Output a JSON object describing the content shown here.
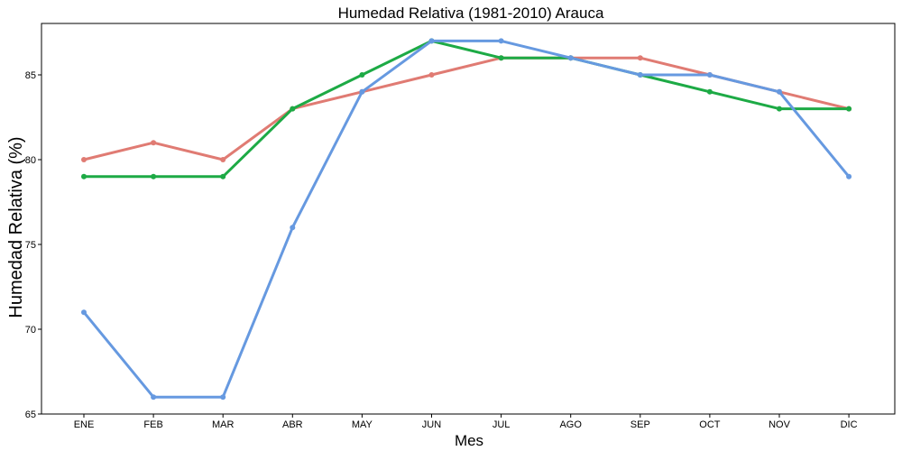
{
  "chart_data": {
    "type": "line",
    "title": "Humedad Relativa (1981-2010)  Arauca",
    "xlabel": "Mes",
    "ylabel": "Humedad Relativa  (%)",
    "categories": [
      "ENE",
      "FEB",
      "MAR",
      "ABR",
      "MAY",
      "JUN",
      "JUL",
      "AGO",
      "SEP",
      "OCT",
      "NOV",
      "DIC"
    ],
    "yticks": [
      65,
      70,
      75,
      80,
      85
    ],
    "ylim": [
      65,
      88
    ],
    "grid": false,
    "legend": "none",
    "series": [
      {
        "color": "#E07B73",
        "values": [
          80,
          81,
          80,
          83,
          84,
          85,
          86,
          86,
          86,
          85,
          84,
          83
        ]
      },
      {
        "color": "#1DAA45",
        "values": [
          79,
          79,
          79,
          83,
          85,
          87,
          86,
          86,
          85,
          84,
          83,
          83
        ]
      },
      {
        "color": "#6699E0",
        "values": [
          71,
          66,
          66,
          76,
          84,
          87,
          87,
          86,
          85,
          85,
          84,
          79
        ]
      }
    ]
  }
}
